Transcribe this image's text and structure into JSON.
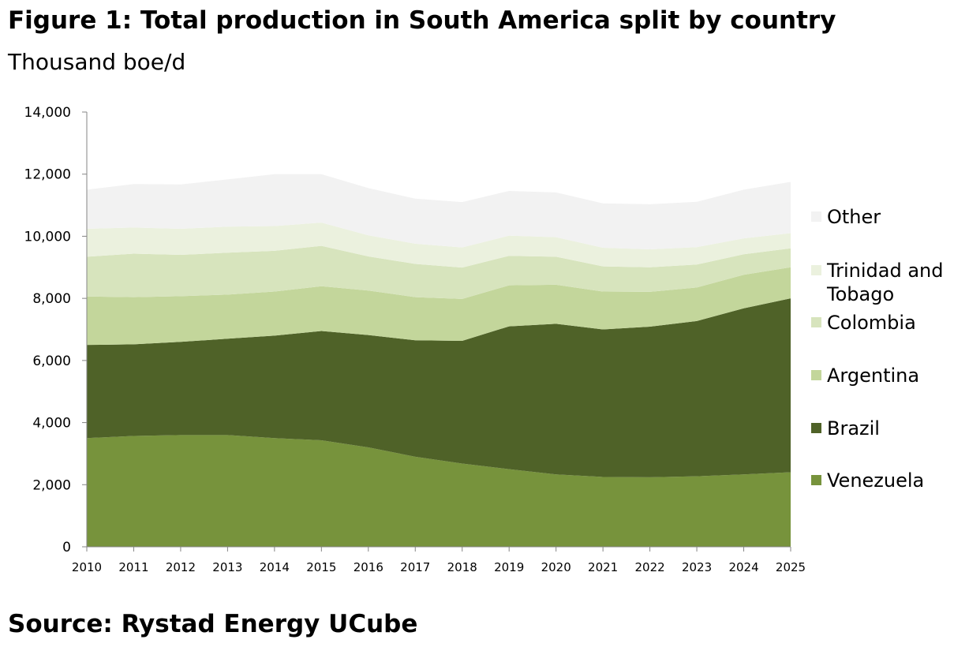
{
  "title": "Figure 1: Total production in South America split by country",
  "subtitle": "Thousand boe/d",
  "source": "Source: Rystad Energy UCube",
  "chart_data": {
    "type": "area",
    "stacked": true,
    "title": "Figure 1: Total production in South America split by country",
    "ylabel": "Thousand boe/d",
    "xlabel": "",
    "ylim": [
      0,
      14000
    ],
    "yticks": [
      0,
      2000,
      4000,
      6000,
      8000,
      10000,
      12000,
      14000
    ],
    "ytick_labels": [
      "0",
      "2,000",
      "4,000",
      "6,000",
      "8,000",
      "10,000",
      "12,000",
      "14,000"
    ],
    "x": [
      "2010",
      "2011",
      "2012",
      "2013",
      "2014",
      "2015",
      "2016",
      "2017",
      "2018",
      "2019",
      "2020",
      "2021",
      "2022",
      "2023",
      "2024",
      "2025"
    ],
    "grid": false,
    "legend_position": "right",
    "series": [
      {
        "name": "Venezuela",
        "color": "#77933c",
        "values": [
          3500,
          3570,
          3600,
          3600,
          3500,
          3430,
          3200,
          2900,
          2680,
          2500,
          2330,
          2250,
          2240,
          2270,
          2330,
          2400
        ]
      },
      {
        "name": "Brazil",
        "color": "#4f6228",
        "values": [
          3000,
          2950,
          3000,
          3100,
          3300,
          3520,
          3620,
          3750,
          3950,
          4600,
          4850,
          4750,
          4850,
          5000,
          5350,
          5600
        ]
      },
      {
        "name": "Argentina",
        "color": "#c3d69b",
        "values": [
          1560,
          1520,
          1470,
          1420,
          1420,
          1440,
          1430,
          1390,
          1350,
          1320,
          1260,
          1220,
          1120,
          1080,
          1080,
          1000
        ]
      },
      {
        "name": "Colombia",
        "color": "#d7e4bd",
        "values": [
          1280,
          1400,
          1330,
          1350,
          1310,
          1300,
          1100,
          1070,
          1010,
          950,
          900,
          810,
          790,
          740,
          660,
          610
        ]
      },
      {
        "name": "Trinidad and Tobago",
        "color": "#ebf1de",
        "values": [
          900,
          840,
          840,
          840,
          800,
          750,
          680,
          650,
          650,
          650,
          630,
          600,
          580,
          560,
          510,
          490
        ]
      },
      {
        "name": "Other",
        "color": "#f2f2f2",
        "values": [
          1260,
          1400,
          1430,
          1520,
          1670,
          1560,
          1520,
          1450,
          1460,
          1440,
          1440,
          1430,
          1450,
          1460,
          1570,
          1650
        ]
      }
    ]
  }
}
